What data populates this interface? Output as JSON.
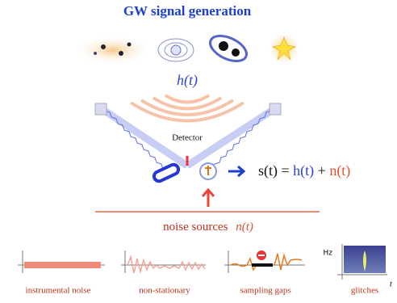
{
  "title": "GW signal generation",
  "signal_label": "h(t)",
  "detector_label": "Detector",
  "equation": {
    "lhs": "s(t) =",
    "signal": "h(t)",
    "plus": "+",
    "noise": "n(t)"
  },
  "noise_sources": {
    "label": "noise sources",
    "symbol": "n(t)"
  },
  "panels": [
    {
      "label": "instrumental noise"
    },
    {
      "label": "non-stationary"
    },
    {
      "label": "sampling gaps"
    },
    {
      "label": "glitches",
      "y_axis": "Hz",
      "x_axis": "t"
    }
  ]
}
